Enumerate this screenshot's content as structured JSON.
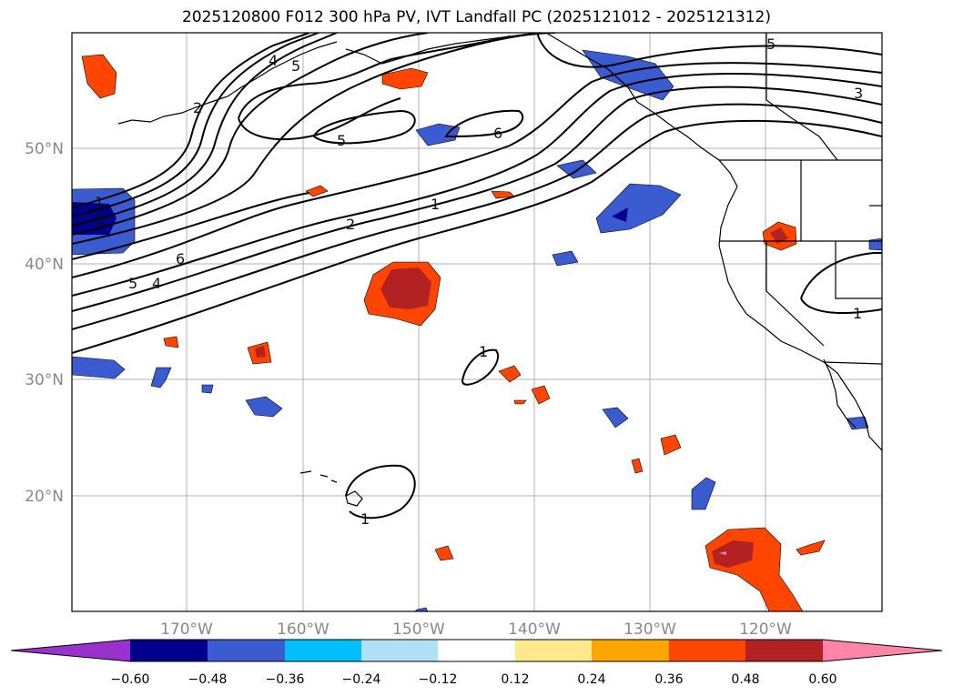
{
  "title": "2025120800 F012 300 hPa PV, IVT Landfall PC (2025121012 - 2025121312)",
  "colors": {
    "neg4": "#9932cc",
    "neg3": "#00008b",
    "neg2": "#3b5bd0",
    "neg1": "#00bfff",
    "neg0": "#b0e0f8",
    "zero": "#ffffff",
    "pos0": "#ffe98c",
    "pos1": "#ffa500",
    "pos2": "#ff4500",
    "pos3": "#b22222",
    "pos4": "#ff85a8"
  },
  "map": {
    "lon_labels": [
      "170°W",
      "160°W",
      "150°W",
      "140°W",
      "130°W",
      "120°W"
    ],
    "lat_labels": [
      "50°N",
      "40°N",
      "30°N",
      "20°N"
    ]
  },
  "contour_labels": [
    "4",
    "5",
    "2",
    "5",
    "6",
    "5",
    "3",
    "1",
    "3",
    "2",
    "1",
    "6",
    "5",
    "4",
    "1",
    "1",
    "1"
  ],
  "colorbar": {
    "ticks": [
      "−0.60",
      "−0.48",
      "−0.36",
      "−0.24",
      "−0.12",
      "0.12",
      "0.24",
      "0.36",
      "0.48",
      "0.60"
    ]
  }
}
